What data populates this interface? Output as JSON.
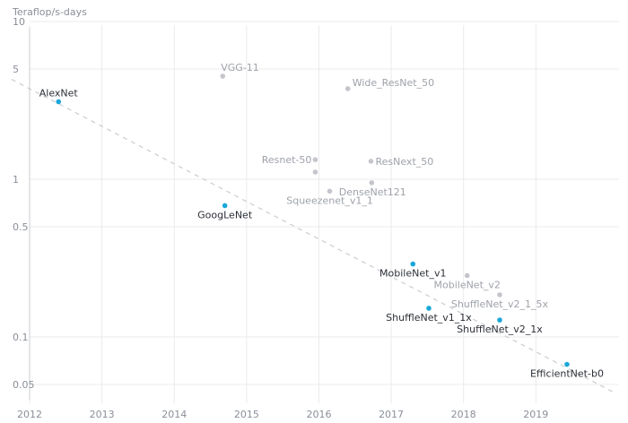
{
  "chart_data": {
    "type": "scatter",
    "title": "",
    "xlabel": "",
    "ylabel": "Teraflop/s-days",
    "yscale": "log",
    "xlim": [
      2012,
      2020.15
    ],
    "ylim": [
      0.04,
      10
    ],
    "x_ticks": [
      "2012",
      "2013",
      "2014",
      "2015",
      "2016",
      "2017",
      "2018",
      "2019"
    ],
    "y_ticks": [
      "10",
      "5",
      "1",
      "0.5",
      "0.1",
      "0.05"
    ],
    "grid": true,
    "colors": {
      "highlight": "#1aa7d9",
      "muted": "#c4c6cc",
      "highlight_text": "#2b2f36",
      "muted_text": "#9ea2a9",
      "trend": "#c9ccd1"
    },
    "trend_line": {
      "from": [
        2011.75,
        4.3
      ],
      "to": [
        2020.1,
        0.044
      ]
    },
    "points": [
      {
        "name": "AlexNet",
        "x": 2012.4,
        "y": 3.1,
        "highlight": true,
        "label_pos": "above"
      },
      {
        "name": "VGG-11",
        "x": 2014.67,
        "y": 4.5,
        "highlight": false,
        "label_pos": "above-right"
      },
      {
        "name": "Wide_ResNet_50",
        "x": 2016.4,
        "y": 3.75,
        "highlight": false,
        "label_pos": "right-up"
      },
      {
        "name": "GoogLeNet",
        "x": 2014.7,
        "y": 0.68,
        "highlight": true,
        "label_pos": "below"
      },
      {
        "name": "Resnet-50",
        "x": 2015.95,
        "y": 1.33,
        "highlight": false,
        "label_pos": "left"
      },
      {
        "name": "",
        "x": 2015.95,
        "y": 1.11,
        "highlight": false,
        "label_pos": "none"
      },
      {
        "name": "ResNext_50",
        "x": 2016.72,
        "y": 1.3,
        "highlight": false,
        "label_pos": "right"
      },
      {
        "name": "DenseNet121",
        "x": 2016.73,
        "y": 0.95,
        "highlight": false,
        "label_pos": "below-right"
      },
      {
        "name": "Squeezenet_v1_1",
        "x": 2016.15,
        "y": 0.84,
        "highlight": false,
        "label_pos": "below"
      },
      {
        "name": "MobileNet_v1",
        "x": 2017.3,
        "y": 0.29,
        "highlight": true,
        "label_pos": "below"
      },
      {
        "name": "MobileNet_v2",
        "x": 2018.05,
        "y": 0.245,
        "highlight": false,
        "label_pos": "below"
      },
      {
        "name": "ShuffleNet_v2_1_5x",
        "x": 2018.5,
        "y": 0.185,
        "highlight": false,
        "label_pos": "below"
      },
      {
        "name": "ShuffleNet_v1_1x",
        "x": 2017.52,
        "y": 0.152,
        "highlight": true,
        "label_pos": "below"
      },
      {
        "name": "ShuffleNet_v2_1x",
        "x": 2018.5,
        "y": 0.128,
        "highlight": true,
        "label_pos": "below"
      },
      {
        "name": "EfficientNet-b0",
        "x": 2019.43,
        "y": 0.067,
        "highlight": true,
        "label_pos": "below"
      }
    ]
  }
}
